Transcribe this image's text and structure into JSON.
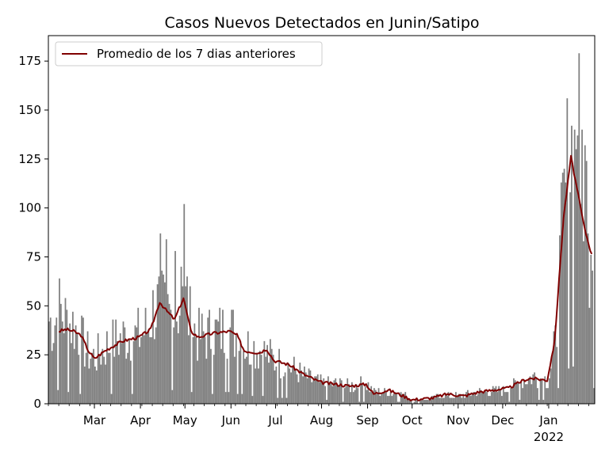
{
  "chart_data": {
    "type": "bar",
    "title": "Casos Nuevos Detectados en Junin/Satipo",
    "xlabel": "",
    "ylabel": "",
    "ylim": [
      0,
      188
    ],
    "yticks": [
      0,
      25,
      50,
      75,
      100,
      125,
      150,
      175
    ],
    "x_start": "2021-01-29",
    "x_end": "2022-01-31",
    "x_ticks": [
      {
        "date": "2021-03-01",
        "label": "Mar"
      },
      {
        "date": "2021-04-01",
        "label": "Apr"
      },
      {
        "date": "2021-05-01",
        "label": "May"
      },
      {
        "date": "2021-06-01",
        "label": "Jun"
      },
      {
        "date": "2021-07-01",
        "label": "Jul"
      },
      {
        "date": "2021-08-01",
        "label": "Aug"
      },
      {
        "date": "2021-09-01",
        "label": "Sep"
      },
      {
        "date": "2021-10-01",
        "label": "Oct"
      },
      {
        "date": "2021-11-01",
        "label": "Nov"
      },
      {
        "date": "2021-12-01",
        "label": "Dec"
      },
      {
        "date": "2022-01-01",
        "label": "Jan",
        "sublabel": "2022"
      }
    ],
    "bar_color": "#808080",
    "line_color": "#800000",
    "legend": {
      "position": "upper-left",
      "entries": [
        "Promedio de los 7 dias anteriores"
      ]
    },
    "daily_cases_anchors": [
      [
        "2021-01-29",
        42
      ],
      [
        "2021-02-01",
        40
      ],
      [
        "2021-02-05",
        48
      ],
      [
        "2021-02-10",
        42
      ],
      [
        "2021-02-15",
        40
      ],
      [
        "2021-02-20",
        32
      ],
      [
        "2021-02-25",
        25
      ],
      [
        "2021-03-01",
        24
      ],
      [
        "2021-03-10",
        30
      ],
      [
        "2021-03-20",
        34
      ],
      [
        "2021-03-31",
        35
      ],
      [
        "2021-04-05",
        38
      ],
      [
        "2021-04-10",
        50
      ],
      [
        "2021-04-15",
        48
      ],
      [
        "2021-04-20",
        45
      ],
      [
        "2021-04-25",
        48
      ],
      [
        "2021-04-30",
        52
      ],
      [
        "2021-05-05",
        40
      ],
      [
        "2021-05-10",
        34
      ],
      [
        "2021-05-20",
        36
      ],
      [
        "2021-05-31",
        38
      ],
      [
        "2021-06-10",
        30
      ],
      [
        "2021-06-20",
        28
      ],
      [
        "2021-06-30",
        22
      ],
      [
        "2021-07-10",
        19
      ],
      [
        "2021-07-20",
        14
      ],
      [
        "2021-08-01",
        10
      ],
      [
        "2021-08-10",
        10
      ],
      [
        "2021-08-20",
        9
      ],
      [
        "2021-08-31",
        10
      ],
      [
        "2021-09-05",
        6
      ],
      [
        "2021-09-15",
        6
      ],
      [
        "2021-09-25",
        5
      ],
      [
        "2021-10-01",
        2
      ],
      [
        "2021-10-10",
        2
      ],
      [
        "2021-10-20",
        4
      ],
      [
        "2021-11-01",
        4
      ],
      [
        "2021-11-15",
        6
      ],
      [
        "2021-12-01",
        7
      ],
      [
        "2021-12-10",
        10
      ],
      [
        "2021-12-20",
        14
      ],
      [
        "2021-12-31",
        12
      ],
      [
        "2022-01-05",
        30
      ],
      [
        "2022-01-10",
        90
      ],
      [
        "2022-01-15",
        130
      ],
      [
        "2022-01-18",
        125
      ],
      [
        "2022-01-22",
        115
      ],
      [
        "2022-01-27",
        80
      ],
      [
        "2022-01-31",
        50
      ]
    ],
    "daily_cases_spikes": [
      [
        "2021-04-14",
        87
      ],
      [
        "2021-04-18",
        84
      ],
      [
        "2021-04-24",
        78
      ],
      [
        "2021-04-30",
        102
      ],
      [
        "2021-05-02",
        65
      ],
      [
        "2021-04-28",
        70
      ],
      [
        "2022-01-21",
        179
      ],
      [
        "2022-01-23",
        140
      ],
      [
        "2022-01-26",
        124
      ],
      [
        "2022-01-20",
        137
      ],
      [
        "2022-01-19",
        130
      ]
    ],
    "avg_7day_anchors": [
      [
        "2021-02-05",
        37
      ],
      [
        "2021-02-10",
        38
      ],
      [
        "2021-02-15",
        37
      ],
      [
        "2021-02-20",
        35
      ],
      [
        "2021-02-25",
        27
      ],
      [
        "2021-03-01",
        23
      ],
      [
        "2021-03-08",
        27
      ],
      [
        "2021-03-15",
        30
      ],
      [
        "2021-03-20",
        32
      ],
      [
        "2021-03-31",
        34
      ],
      [
        "2021-04-08",
        38
      ],
      [
        "2021-04-14",
        52
      ],
      [
        "2021-04-18",
        48
      ],
      [
        "2021-04-24",
        43
      ],
      [
        "2021-04-30",
        54
      ],
      [
        "2021-05-05",
        37
      ],
      [
        "2021-05-10",
        34
      ],
      [
        "2021-05-20",
        36
      ],
      [
        "2021-05-31",
        37
      ],
      [
        "2021-06-05",
        35
      ],
      [
        "2021-06-10",
        27
      ],
      [
        "2021-06-20",
        26
      ],
      [
        "2021-06-25",
        28
      ],
      [
        "2021-06-30",
        22
      ],
      [
        "2021-07-10",
        20
      ],
      [
        "2021-07-20",
        15
      ],
      [
        "2021-07-31",
        11
      ],
      [
        "2021-08-10",
        10
      ],
      [
        "2021-08-20",
        9
      ],
      [
        "2021-08-31",
        10
      ],
      [
        "2021-09-05",
        5
      ],
      [
        "2021-09-15",
        7
      ],
      [
        "2021-09-25",
        4
      ],
      [
        "2021-10-01",
        2
      ],
      [
        "2021-10-15",
        3
      ],
      [
        "2021-10-25",
        5
      ],
      [
        "2021-11-05",
        4
      ],
      [
        "2021-11-15",
        6
      ],
      [
        "2021-11-25",
        7
      ],
      [
        "2021-12-05",
        8
      ],
      [
        "2021-12-15",
        12
      ],
      [
        "2021-12-20",
        13
      ],
      [
        "2021-12-31",
        12
      ],
      [
        "2022-01-05",
        32
      ],
      [
        "2022-01-11",
        95
      ],
      [
        "2022-01-16",
        126
      ],
      [
        "2022-01-20",
        110
      ],
      [
        "2022-01-25",
        90
      ],
      [
        "2022-01-30",
        76
      ]
    ]
  }
}
